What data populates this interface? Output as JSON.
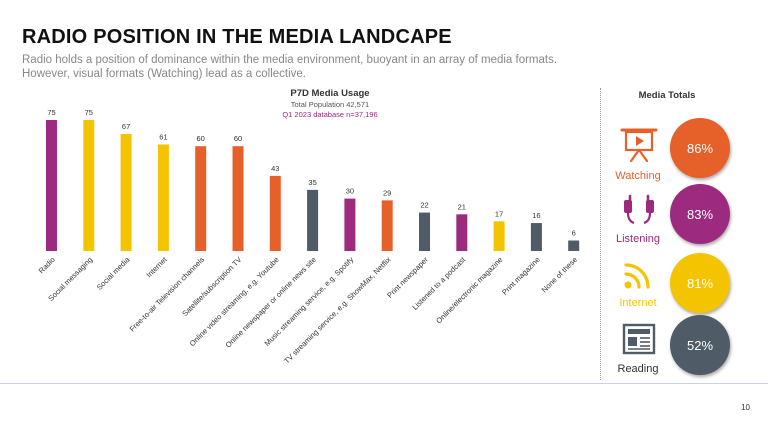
{
  "slide": {
    "title": "RADIO POSITION IN THE MEDIA LANDCAPE",
    "subtitle": "Radio holds a position of dominance within the media environment, buoyant in an array of media formats. However, visual formats (Watching) lead as a collective.",
    "page_number": "10"
  },
  "chart_data": {
    "type": "bar",
    "title": "P7D Media Usage",
    "subtitle_lines": [
      "Total Population 42,571",
      "Q1 2023 database n=37,196"
    ],
    "categories": [
      "Radio",
      "Social messaging",
      "Social media",
      "Internet",
      "Free-to-air Television channels",
      "Satellite/subscription TV",
      "Online video streaming, e.g. Youtube",
      "Online newspaper or online news site",
      "Music streaming service, e.g. Spotify",
      "TV streaming service, e.g. ShowMax, Netflix",
      "Print newspaper",
      "Listened to a podcast",
      "Online/electronic magazine",
      "Print magazine",
      "None of these"
    ],
    "values": [
      75,
      75,
      67,
      61,
      60,
      60,
      43,
      35,
      30,
      29,
      22,
      21,
      17,
      16,
      6
    ],
    "bar_colors": [
      "#9c2a7e",
      "#f5c400",
      "#f5c400",
      "#f5c400",
      "#e6612a",
      "#e6612a",
      "#e6612a",
      "#4f5b66",
      "#9c2a7e",
      "#e6612a",
      "#4f5b66",
      "#9c2a7e",
      "#f5c400",
      "#4f5b66",
      "#4f5b66"
    ],
    "ylim": [
      0,
      75
    ],
    "grid": false,
    "legend": "none"
  },
  "media_totals": {
    "title": "Media Totals",
    "items": [
      {
        "label": "Watching",
        "value": "86%",
        "color": "#e6612a",
        "icon": "presentation-board-icon"
      },
      {
        "label": "Listening",
        "value": "83%",
        "color": "#9c2a7e",
        "icon": "headphones-icon"
      },
      {
        "label": "Internet",
        "value": "81%",
        "color": "#f5c400",
        "icon": "wifi-icon"
      },
      {
        "label": "Reading",
        "value": "52%",
        "color": "#4f5b66",
        "icon": "newspaper-icon"
      }
    ]
  }
}
